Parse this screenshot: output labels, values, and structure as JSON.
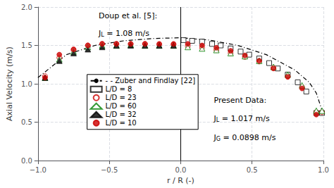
{
  "chart_data": {
    "type": "scatter",
    "xlabel": "r / R (-)",
    "ylabel": "Axial Velocity (m/s)",
    "xlim": [
      -1,
      1
    ],
    "ylim": [
      0,
      2
    ],
    "xticks": [
      {
        "value": -1,
        "label": "−1.0"
      },
      {
        "value": -0.5,
        "label": "−0.5"
      },
      {
        "value": 0,
        "label": "0.0"
      },
      0.5,
      {
        "value": 1,
        "label": "1.0"
      }
    ],
    "yticks": [
      {
        "value": 0,
        "label": "0.0"
      },
      0.5,
      {
        "value": 1.0,
        "label": "1.0"
      },
      1.5,
      {
        "value": 2.0,
        "label": "2.0"
      }
    ],
    "grid": true,
    "legend": "left",
    "annotations": [
      "Doup et al. [5]:",
      "JL = 1.08 m/s",
      "Present Data:",
      "JL = 1.017 m/s",
      "JG = 0.0898 m/s"
    ],
    "vlines": [
      {
        "x": 0,
        "color": "#000000"
      }
    ],
    "series": [
      {
        "name": "- - Zuber and Findlay [22]",
        "type": "line",
        "line_style": "dashdot",
        "color": "#000000",
        "x": [
          -1.0,
          -0.8,
          -0.6,
          -0.4,
          -0.2,
          0.0,
          0.2,
          0.4,
          0.6,
          0.8,
          0.9,
          0.95,
          1.0
        ],
        "values": [
          1.08,
          1.38,
          1.5,
          1.56,
          1.59,
          1.6,
          1.57,
          1.5,
          1.38,
          1.18,
          1.02,
          0.88,
          0.6
        ]
      },
      {
        "name": "L/D = 8",
        "type": "scatter",
        "marker": "open_square",
        "color": "#000000",
        "x": [
          0.02,
          0.08,
          0.15,
          0.22,
          0.28,
          0.35,
          0.42,
          0.48,
          0.55,
          0.62,
          0.68,
          0.75,
          0.82,
          0.88,
          0.95,
          0.99
        ],
        "values": [
          1.57,
          1.56,
          1.55,
          1.52,
          1.5,
          1.46,
          1.42,
          1.38,
          1.33,
          1.27,
          1.2,
          1.12,
          1.02,
          0.9,
          0.62,
          0.62
        ]
      },
      {
        "name": "L/D = 23",
        "type": "scatter",
        "marker": "open_circle",
        "color": "#cc0000",
        "x": [
          -0.95,
          -0.85,
          -0.75,
          -0.65,
          -0.55,
          -0.45,
          -0.35,
          -0.25,
          -0.15,
          -0.05,
          0.05,
          0.15,
          0.25,
          0.35,
          0.45,
          0.55,
          0.65,
          0.75,
          0.85,
          0.95,
          0.99
        ],
        "values": [
          1.1,
          1.34,
          1.44,
          1.5,
          1.52,
          1.52,
          1.52,
          1.52,
          1.51,
          1.51,
          1.49,
          1.47,
          1.44,
          1.4,
          1.35,
          1.29,
          1.21,
          1.1,
          0.96,
          0.63,
          0.63
        ]
      },
      {
        "name": "L/D = 60",
        "type": "scatter",
        "marker": "open_triangle",
        "color": "#008000",
        "x": [
          -0.95,
          -0.85,
          -0.75,
          -0.65,
          -0.55,
          -0.45,
          -0.35,
          -0.25,
          -0.15,
          -0.05,
          0.05,
          0.15,
          0.25,
          0.35,
          0.45,
          0.55,
          0.65,
          0.75,
          0.85,
          0.95,
          0.99
        ],
        "values": [
          1.08,
          1.32,
          1.42,
          1.48,
          1.5,
          1.5,
          1.51,
          1.5,
          1.5,
          1.5,
          1.48,
          1.46,
          1.44,
          1.4,
          1.36,
          1.3,
          1.22,
          1.12,
          0.98,
          0.65,
          0.65
        ]
      },
      {
        "name": "L/D = 32",
        "type": "scatter",
        "marker": "filled_triangle",
        "color": "#000000",
        "x": [
          -0.95,
          -0.85,
          -0.75,
          -0.65,
          -0.55,
          -0.45,
          -0.35,
          -0.25,
          -0.15,
          -0.05
        ],
        "values": [
          1.08,
          1.3,
          1.4,
          1.45,
          1.48,
          1.5,
          1.5,
          1.5,
          1.5,
          1.5
        ]
      },
      {
        "name": "L/D = 10",
        "type": "scatter",
        "marker": "filled_circle",
        "color": "#cc0000",
        "x": [
          -0.95,
          -0.85,
          -0.75,
          -0.65,
          -0.55,
          -0.45,
          -0.35,
          -0.25,
          -0.15,
          -0.05,
          0.05,
          0.15,
          0.25,
          0.35,
          0.45,
          0.55,
          0.65,
          0.75,
          0.85,
          0.95
        ],
        "values": [
          1.08,
          1.38,
          1.45,
          1.5,
          1.52,
          1.52,
          1.52,
          1.52,
          1.52,
          1.52,
          1.52,
          1.5,
          1.47,
          1.43,
          1.37,
          1.3,
          1.2,
          1.09,
          0.94,
          0.6
        ]
      }
    ]
  }
}
